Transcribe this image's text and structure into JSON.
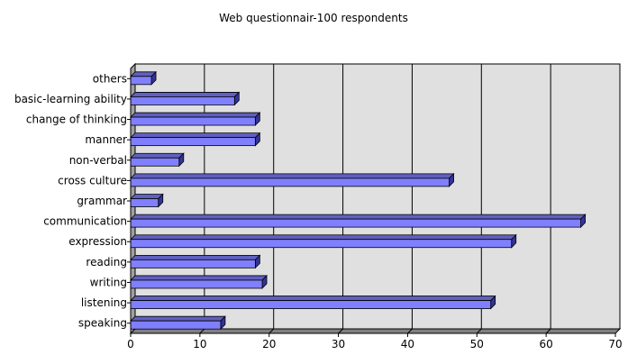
{
  "chart_data": {
    "type": "bar",
    "orientation": "horizontal",
    "title": "Web questionnair-100 respondents",
    "categories": [
      "others",
      "basic-learning ability",
      "change of thinking",
      "manner",
      "non-verbal",
      "cross culture",
      "grammar",
      "communication",
      "expression",
      "reading",
      "writing",
      "listening",
      "speaking"
    ],
    "values": [
      3,
      15,
      18,
      18,
      7,
      46,
      4,
      65,
      55,
      18,
      19,
      52,
      13
    ],
    "x_ticks": [
      "0",
      "10",
      "20",
      "30",
      "40",
      "50",
      "60",
      "70"
    ],
    "xlim": [
      0,
      70
    ],
    "grid": true,
    "legend": "none",
    "colors": {
      "bar_front": "#8080ff",
      "bar_top": "#6060c0",
      "bar_side": "#333399",
      "bar_outline": "#000000",
      "plot_background": "#e0e0e0",
      "plot_side_wall": "#a0a0a0",
      "plot_floor": "#808080",
      "grid": "#000000"
    }
  }
}
